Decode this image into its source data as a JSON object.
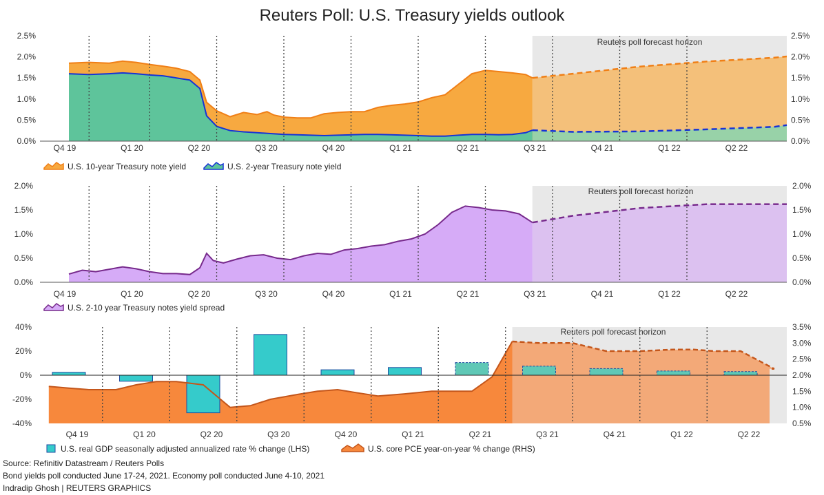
{
  "title": "Reuters Poll: U.S. Treasury yields outlook",
  "horizon_label": "Reuters poll forecast horizon",
  "footer": {
    "source": "Source: Refinitiv Datastream / Reuters Polls",
    "note": "Bond yields poll conducted June 17-24, 2021. Economy poll conducted June 4-10, 2021",
    "credit": "Indradip Ghosh | REUTERS GRAPHICS"
  },
  "colors": {
    "orange_area": "#f7a940",
    "orange_line": "#f07f16",
    "forecast_orange_area": "#f4c07a",
    "teal_area": "#5ec49b",
    "blue_line": "#1733d6",
    "forecast_teal_area": "#98d2a8",
    "purple_area": "#d6abf7",
    "purple_line": "#772a8c",
    "forecast_purple_area": "#dcc1f0",
    "gdp_bar": "#35cbcb",
    "gdp_bar_stroke": "#1f4aa0",
    "pce_area": "#f7883c",
    "pce_line": "#c4561b",
    "forecast_pce_area": "#f3a978",
    "forecast_gdp_bar": "#5fc8b6",
    "horizon_bg": "#e8e8e8"
  },
  "chart_data": [
    {
      "id": "yields",
      "type": "area",
      "quarters": [
        "Q4 19",
        "Q1 20",
        "Q2 20",
        "Q3 20",
        "Q4 20",
        "Q1 21",
        "Q2 21",
        "Q3 21",
        "Q4 21",
        "Q1 22",
        "Q2 22"
      ],
      "y_ticks_left": [
        "2.5%",
        "2.0%",
        "1.5%",
        "1.0%",
        "0.5%",
        "0.0%"
      ],
      "y_ticks_right": [
        "2.5%",
        "2.0%",
        "1.5%",
        "1.0%",
        "0.5%",
        "0.0%"
      ],
      "ylim": [
        0,
        2.5
      ],
      "legend": [
        "U.S. 10-year Treasury note yield",
        "U.S. 2-year Treasury note yield"
      ],
      "series": [
        {
          "name": "U.S. 10-year Treasury note yield",
          "x": [
            0.0,
            0.3,
            0.6,
            0.8,
            1.0,
            1.2,
            1.4,
            1.6,
            1.8,
            1.95,
            2.05,
            2.2,
            2.4,
            2.6,
            2.8,
            2.95,
            3.05,
            3.2,
            3.4,
            3.6,
            3.8,
            4.0,
            4.2,
            4.4,
            4.6,
            4.8,
            5.0,
            5.2,
            5.4,
            5.6,
            5.8,
            6.0,
            6.2,
            6.4,
            6.6,
            6.8,
            6.9
          ],
          "values": [
            1.85,
            1.87,
            1.85,
            1.9,
            1.87,
            1.82,
            1.78,
            1.73,
            1.65,
            1.45,
            0.92,
            0.72,
            0.58,
            0.68,
            0.63,
            0.7,
            0.62,
            0.57,
            0.55,
            0.55,
            0.65,
            0.68,
            0.7,
            0.7,
            0.8,
            0.85,
            0.88,
            0.93,
            1.03,
            1.1,
            1.35,
            1.6,
            1.68,
            1.65,
            1.62,
            1.58,
            1.5
          ]
        },
        {
          "name": "U.S. 2-year Treasury note yield",
          "x": [
            0.0,
            0.3,
            0.6,
            0.8,
            1.0,
            1.2,
            1.4,
            1.6,
            1.8,
            1.95,
            2.05,
            2.2,
            2.4,
            2.6,
            2.8,
            3.0,
            3.2,
            3.4,
            3.6,
            3.8,
            4.0,
            4.2,
            4.4,
            4.6,
            4.8,
            5.0,
            5.2,
            5.4,
            5.6,
            5.8,
            6.0,
            6.2,
            6.4,
            6.6,
            6.8,
            6.9
          ],
          "values": [
            1.6,
            1.58,
            1.6,
            1.62,
            1.6,
            1.57,
            1.55,
            1.5,
            1.45,
            1.25,
            0.6,
            0.35,
            0.25,
            0.22,
            0.2,
            0.18,
            0.16,
            0.15,
            0.14,
            0.13,
            0.14,
            0.15,
            0.16,
            0.16,
            0.15,
            0.14,
            0.13,
            0.12,
            0.12,
            0.14,
            0.16,
            0.16,
            0.15,
            0.16,
            0.2,
            0.26
          ]
        }
      ],
      "forecast": {
        "x": [
          6.9,
          7.5,
          8.5,
          9.5,
          10.5
        ],
        "ten_year": [
          1.5,
          1.6,
          1.77,
          1.89,
          1.98
        ],
        "two_year": [
          0.26,
          0.22,
          0.23,
          0.28,
          0.34
        ],
        "ten_year_end": 2.01,
        "two_year_end": 0.38
      }
    },
    {
      "id": "spread",
      "type": "area",
      "quarters": [
        "Q4 19",
        "Q1 20",
        "Q2 20",
        "Q3 20",
        "Q4 20",
        "Q1 21",
        "Q2 21",
        "Q3 21",
        "Q4 21",
        "Q1 22",
        "Q2 22"
      ],
      "y_ticks_left": [
        "2.0%",
        "1.5%",
        "1.0%",
        "0.5%",
        "0.0%"
      ],
      "y_ticks_right": [
        "2.0%",
        "1.5%",
        "1.0%",
        "0.5%",
        "0.0%"
      ],
      "ylim": [
        0,
        2.0
      ],
      "legend": [
        "U.S. 2-10 year Treasury notes yield spread"
      ],
      "series": [
        {
          "name": "U.S. 2-10 year Treasury notes yield spread",
          "x": [
            0.0,
            0.2,
            0.4,
            0.6,
            0.8,
            1.0,
            1.2,
            1.4,
            1.6,
            1.8,
            1.95,
            2.05,
            2.15,
            2.3,
            2.5,
            2.7,
            2.9,
            3.1,
            3.3,
            3.5,
            3.7,
            3.9,
            4.1,
            4.3,
            4.5,
            4.7,
            4.9,
            5.1,
            5.3,
            5.5,
            5.7,
            5.9,
            6.1,
            6.3,
            6.5,
            6.7,
            6.9
          ],
          "values": [
            0.17,
            0.25,
            0.22,
            0.27,
            0.32,
            0.28,
            0.22,
            0.18,
            0.18,
            0.16,
            0.3,
            0.6,
            0.45,
            0.4,
            0.48,
            0.55,
            0.57,
            0.5,
            0.47,
            0.55,
            0.6,
            0.58,
            0.67,
            0.7,
            0.75,
            0.78,
            0.85,
            0.9,
            1.0,
            1.2,
            1.45,
            1.58,
            1.55,
            1.5,
            1.48,
            1.42,
            1.24
          ]
        }
      ],
      "forecast": {
        "x": [
          6.9,
          7.5,
          8.5,
          9.5,
          10.5
        ],
        "values": [
          1.24,
          1.38,
          1.54,
          1.62,
          1.62
        ],
        "end": 1.62
      }
    },
    {
      "id": "economy",
      "type": "bar",
      "categories": [
        "Q4 19",
        "Q1 20",
        "Q2 20",
        "Q3 20",
        "Q4 20",
        "Q1 21",
        "Q2 21",
        "Q3 21",
        "Q4 21",
        "Q1 22",
        "Q2 22"
      ],
      "y_ticks_left": [
        "40%",
        "20%",
        "0%",
        "-20%",
        "-40%"
      ],
      "y_ticks_right": [
        "3.5%",
        "3.0%",
        "2.5%",
        "2.0%",
        "1.5%",
        "1.0%",
        "0.5%"
      ],
      "ylim_left": [
        -40,
        40
      ],
      "ylim_right": [
        0.5,
        3.5
      ],
      "legend": [
        "U.S. real GDP seasonally adjusted annualized rate % change (LHS)",
        "U.S. core PCE year-on-year % change (RHS)"
      ],
      "series": [
        {
          "name": "U.S. real GDP seasonally adjusted annualized rate % change (LHS)",
          "values": [
            2.4,
            -5.0,
            -31.2,
            33.8,
            4.5,
            6.4,
            10.5,
            7.5,
            5.5,
            3.5,
            3.0
          ],
          "forecast_from_index": 6
        },
        {
          "name": "U.S. core PCE year-on-year % change (RHS)",
          "x": [
            -0.3,
            0.0,
            0.3,
            0.7,
            1.0,
            1.3,
            1.6,
            2.0,
            2.4,
            2.7,
            3.0,
            3.4,
            3.7,
            4.0,
            4.3,
            4.6,
            5.0,
            5.4,
            5.8,
            6.0,
            6.3,
            6.6,
            7.0,
            7.5,
            8.0,
            8.5,
            9.0,
            9.3,
            9.6,
            10.0,
            10.5
          ],
          "values": [
            1.65,
            1.6,
            1.55,
            1.55,
            1.7,
            1.8,
            1.8,
            1.7,
            1.0,
            1.05,
            1.25,
            1.4,
            1.5,
            1.55,
            1.45,
            1.35,
            1.42,
            1.5,
            1.5,
            1.5,
            1.95,
            3.05,
            3.0,
            3.0,
            2.75,
            2.75,
            2.8,
            2.8,
            2.75,
            2.75,
            2.2
          ],
          "forecast_from_x": 6.6
        }
      ]
    }
  ]
}
